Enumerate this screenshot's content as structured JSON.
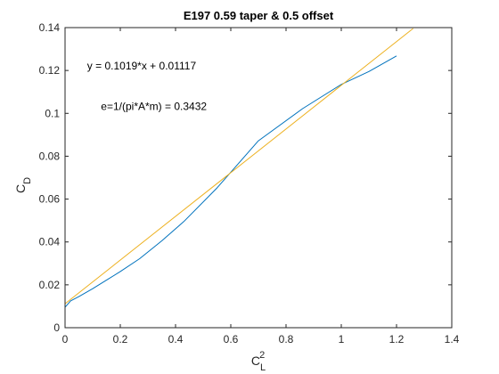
{
  "chart_data": {
    "type": "line",
    "title": "E197 0.59 taper & 0.5 offset",
    "xlabel": {
      "base": "C",
      "sub": "L",
      "sup": "2"
    },
    "ylabel": {
      "base": "C",
      "sub": "D"
    },
    "xlim": [
      0,
      1.4
    ],
    "ylim": [
      0,
      0.14
    ],
    "xticks": [
      "0",
      "0.2",
      "0.4",
      "0.6",
      "0.8",
      "1",
      "1.2",
      "1.4"
    ],
    "yticks": [
      "0",
      "0.02",
      "0.04",
      "0.06",
      "0.08",
      "0.1",
      "0.12",
      "0.14"
    ],
    "grid": false,
    "annotations": [
      {
        "text": "y = 0.1019*x + 0.01117",
        "x": 0.08,
        "y": 0.1205
      },
      {
        "text": "e=1/(pi*A*m) = 0.3432",
        "x": 0.13,
        "y": 0.1015
      }
    ],
    "series": [
      {
        "color": "#0072BD",
        "x": [
          0,
          0.02,
          0.05,
          0.1,
          0.15,
          0.2,
          0.27,
          0.35,
          0.43,
          0.55,
          0.7,
          0.86,
          1.0,
          1.1,
          1.2
        ],
        "y": [
          0.0095,
          0.0125,
          0.0145,
          0.0182,
          0.0222,
          0.0262,
          0.0322,
          0.0405,
          0.0495,
          0.0652,
          0.0872,
          0.1022,
          0.1135,
          0.1195,
          0.1268
        ]
      },
      {
        "color": "#EDB120",
        "x": [
          0,
          1.26
        ],
        "y": [
          0.01117,
          0.1396
        ]
      }
    ]
  }
}
